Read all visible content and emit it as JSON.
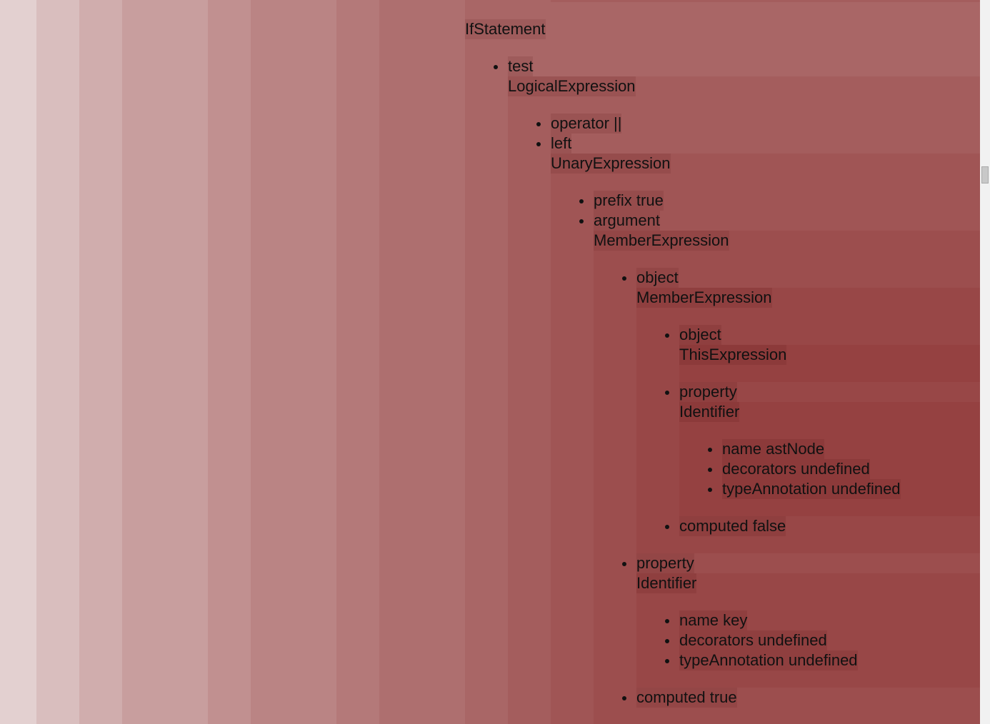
{
  "lines": [
    "IfStatement",
    "test",
    "LogicalExpression",
    "operator ||",
    "left",
    "UnaryExpression",
    "prefix true",
    "argument",
    "MemberExpression",
    "object",
    "MemberExpression",
    "object",
    "ThisExpression",
    "property",
    "Identifier",
    "name astNode",
    "decorators undefined",
    "typeAnnotation undefined",
    "computed false",
    "property",
    "Identifier",
    "name key",
    "decorators undefined",
    "typeAnnotation undefined",
    "computed true"
  ]
}
